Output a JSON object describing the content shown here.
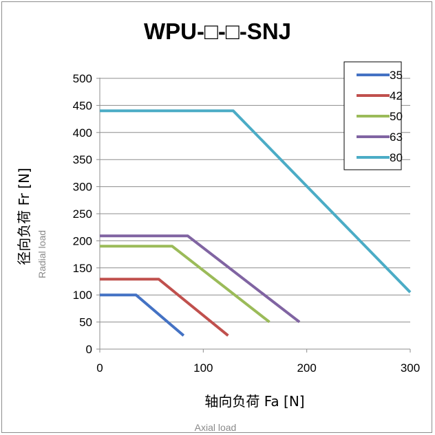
{
  "chart_data": {
    "type": "line",
    "title": "WPU-□-□-SNJ",
    "xlabel": "轴向负荷 Fa [N]",
    "xlabel_sub": "Axial load",
    "ylabel": "径向负荷 Fr [N]",
    "ylabel_sub": "Radial load",
    "xlim": [
      0,
      300
    ],
    "ylim": [
      0,
      500
    ],
    "x_ticks": [
      "0",
      "100",
      "200",
      "300"
    ],
    "y_ticks": [
      "0",
      "50",
      "100",
      "150",
      "200",
      "250",
      "300",
      "350",
      "400",
      "450",
      "500"
    ],
    "grid": "horizontal",
    "legend_position": "top-right",
    "series": [
      {
        "name": "35",
        "color": "#4472c4",
        "points": [
          [
            0,
            100
          ],
          [
            35,
            100
          ],
          [
            81,
            25
          ]
        ]
      },
      {
        "name": "42",
        "color": "#c0504d",
        "points": [
          [
            0,
            129
          ],
          [
            57,
            129
          ],
          [
            124,
            25
          ]
        ]
      },
      {
        "name": "50",
        "color": "#9bbb59",
        "points": [
          [
            0,
            190
          ],
          [
            70,
            190
          ],
          [
            164,
            50
          ]
        ]
      },
      {
        "name": "63",
        "color": "#8064a2",
        "points": [
          [
            0,
            209
          ],
          [
            85,
            209
          ],
          [
            193,
            50
          ]
        ]
      },
      {
        "name": "80",
        "color": "#4bacc6",
        "points": [
          [
            0,
            440
          ],
          [
            129,
            440
          ],
          [
            300,
            105
          ]
        ]
      }
    ]
  }
}
